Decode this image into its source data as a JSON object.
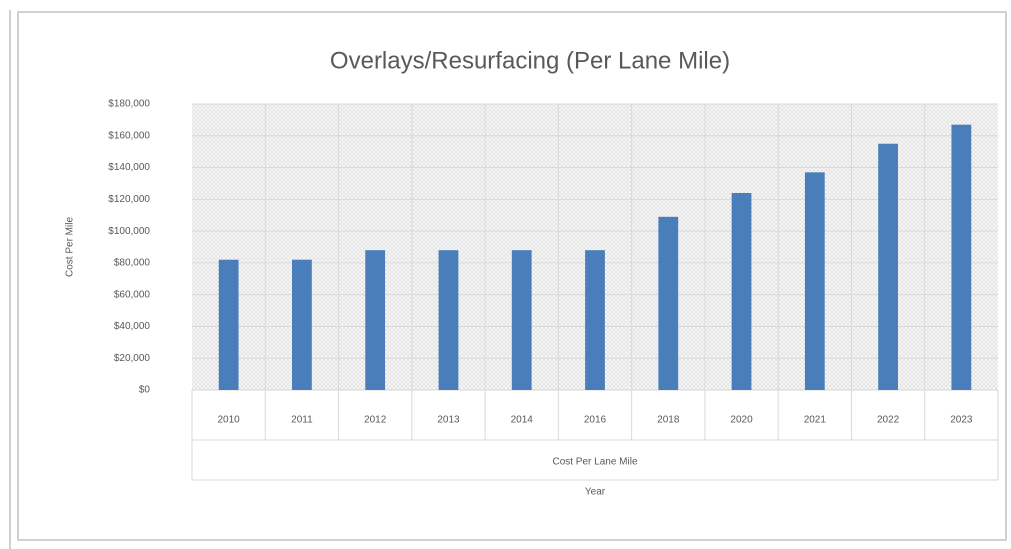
{
  "chart_data": {
    "type": "bar",
    "title": "Overlays/Resurfacing (Per Lane Mile)",
    "y_label": "Cost Per Mile",
    "x_group_label": "Cost Per Lane Mile",
    "x_label": "Year",
    "categories": [
      "2010",
      "2011",
      "2012",
      "2013",
      "2014",
      "2016",
      "2018",
      "2020",
      "2021",
      "2022",
      "2023"
    ],
    "values": [
      82000,
      82000,
      88000,
      88000,
      88000,
      88000,
      109000,
      124000,
      137000,
      155000,
      167000
    ],
    "color": "#4a7ebb",
    "ylim": [
      0,
      180000
    ],
    "yticks": [
      {
        "value": 0,
        "label": "$0"
      },
      {
        "value": 20000,
        "label": "$20,000"
      },
      {
        "value": 40000,
        "label": "$40,000"
      },
      {
        "value": 60000,
        "label": "$60,000"
      },
      {
        "value": 80000,
        "label": "$80,000"
      },
      {
        "value": 100000,
        "label": "$100,000"
      },
      {
        "value": 120000,
        "label": "$120,000"
      },
      {
        "value": 140000,
        "label": "$140,000"
      },
      {
        "value": 160000,
        "label": "$160,000"
      },
      {
        "value": 180000,
        "label": "$180,000"
      }
    ],
    "grid": true
  }
}
